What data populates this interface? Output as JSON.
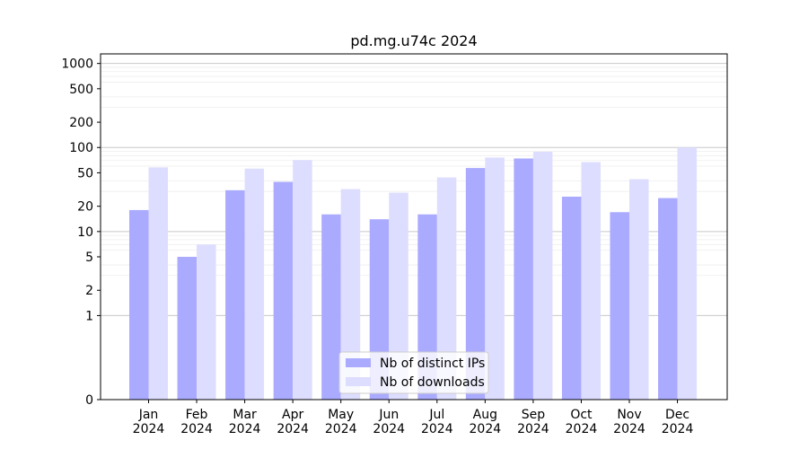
{
  "chart_data": {
    "type": "bar",
    "title": "pd.mg.u74c 2024",
    "xlabel": "",
    "ylabel": "",
    "y_scale": "symlog",
    "ylim": [
      0,
      1300
    ],
    "y_ticks": [
      0,
      1,
      2,
      5,
      10,
      20,
      50,
      100,
      200,
      500,
      1000
    ],
    "grid": true,
    "legend_position": "lower-center",
    "categories": [
      {
        "month": "Jan",
        "year": "2024"
      },
      {
        "month": "Feb",
        "year": "2024"
      },
      {
        "month": "Mar",
        "year": "2024"
      },
      {
        "month": "Apr",
        "year": "2024"
      },
      {
        "month": "May",
        "year": "2024"
      },
      {
        "month": "Jun",
        "year": "2024"
      },
      {
        "month": "Jul",
        "year": "2024"
      },
      {
        "month": "Aug",
        "year": "2024"
      },
      {
        "month": "Sep",
        "year": "2024"
      },
      {
        "month": "Oct",
        "year": "2024"
      },
      {
        "month": "Nov",
        "year": "2024"
      },
      {
        "month": "Dec",
        "year": "2024"
      }
    ],
    "series": [
      {
        "name": "Nb of distinct IPs",
        "color": "#aaaaff",
        "values": [
          18,
          5,
          31,
          39,
          16,
          14,
          16,
          57,
          74,
          26,
          17,
          25
        ]
      },
      {
        "name": "Nb of downloads",
        "color": "#ddddff",
        "values": [
          58,
          7,
          56,
          71,
          32,
          29,
          44,
          76,
          89,
          67,
          42,
          100
        ]
      }
    ]
  }
}
